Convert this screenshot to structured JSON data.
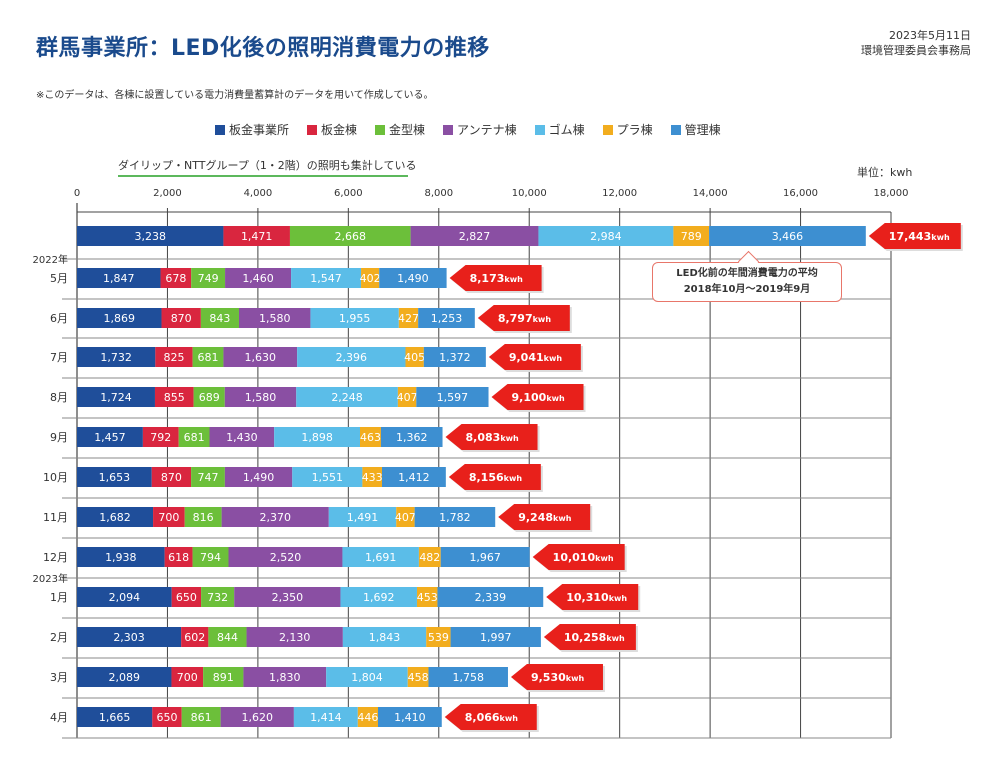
{
  "header": {
    "title": "群馬事業所：LED化後の照明消費電力の推移",
    "date": "2023年5月11日",
    "office": "環境管理委員会事務局",
    "note": "※このデータは、各棟に設置している電力消費量蓄算計のデータを用いて作成している。",
    "ntt_note": "ダイリップ・NTTグループ（1・2階）の照明も集計している",
    "unit": "単位：kwh",
    "callout_line1": "LED化前の年間消費電力の平均",
    "callout_line2": "2018年10月〜2019年9月"
  },
  "chart_data": {
    "type": "bar",
    "orientation": "horizontal",
    "stacked": true,
    "xlim": [
      0,
      18000
    ],
    "x_ticks": [
      "0",
      "2,000",
      "4,000",
      "6,000",
      "8,000",
      "10,000",
      "12,000",
      "14,000",
      "16,000",
      "18,000"
    ],
    "categories": [
      "",
      "5月",
      "6月",
      "7月",
      "8月",
      "9月",
      "10月",
      "11月",
      "12月",
      "1月",
      "2月",
      "3月",
      "4月"
    ],
    "year_labels": [
      {
        "before_index": 1,
        "label": "2022年"
      },
      {
        "before_index": 9,
        "label": "2023年"
      }
    ],
    "series": [
      {
        "name": "板金事業所",
        "color": "#1f4e9a",
        "values": [
          3238,
          1847,
          1869,
          1732,
          1724,
          1457,
          1653,
          1682,
          1938,
          2094,
          2303,
          2089,
          1665
        ]
      },
      {
        "name": "板金棟",
        "color": "#d9263f",
        "values": [
          1471,
          678,
          870,
          825,
          855,
          792,
          870,
          700,
          618,
          650,
          602,
          700,
          650
        ]
      },
      {
        "name": "金型棟",
        "color": "#6cbf3a",
        "values": [
          2668,
          749,
          843,
          681,
          689,
          681,
          747,
          816,
          794,
          732,
          844,
          891,
          861
        ]
      },
      {
        "name": "アンテナ棟",
        "color": "#8a4fa3",
        "values": [
          2827,
          1460,
          1580,
          1630,
          1580,
          1430,
          1490,
          2370,
          2520,
          2350,
          2130,
          1830,
          1620
        ]
      },
      {
        "name": "ゴム棟",
        "color": "#5bbde8",
        "values": [
          2984,
          1547,
          1955,
          2396,
          2248,
          1898,
          1551,
          1491,
          1691,
          1692,
          1843,
          1804,
          1414
        ]
      },
      {
        "name": "プラ棟",
        "color": "#f2ad1e",
        "values": [
          789,
          402,
          427,
          405,
          407,
          463,
          433,
          407,
          482,
          453,
          539,
          458,
          446
        ]
      },
      {
        "name": "管理棟",
        "color": "#3d8fd1",
        "values": [
          3466,
          1490,
          1253,
          1372,
          1597,
          1362,
          1412,
          1782,
          1967,
          2339,
          1997,
          1758,
          1410
        ]
      }
    ],
    "totals": [
      "17,443",
      "8,173",
      "8,797",
      "9,041",
      "9,100",
      "8,083",
      "8,156",
      "9,248",
      "10,010",
      "10,310",
      "10,258",
      "9,530",
      "8,066"
    ],
    "total_unit": "kwh",
    "total_color": "#e8201b"
  }
}
